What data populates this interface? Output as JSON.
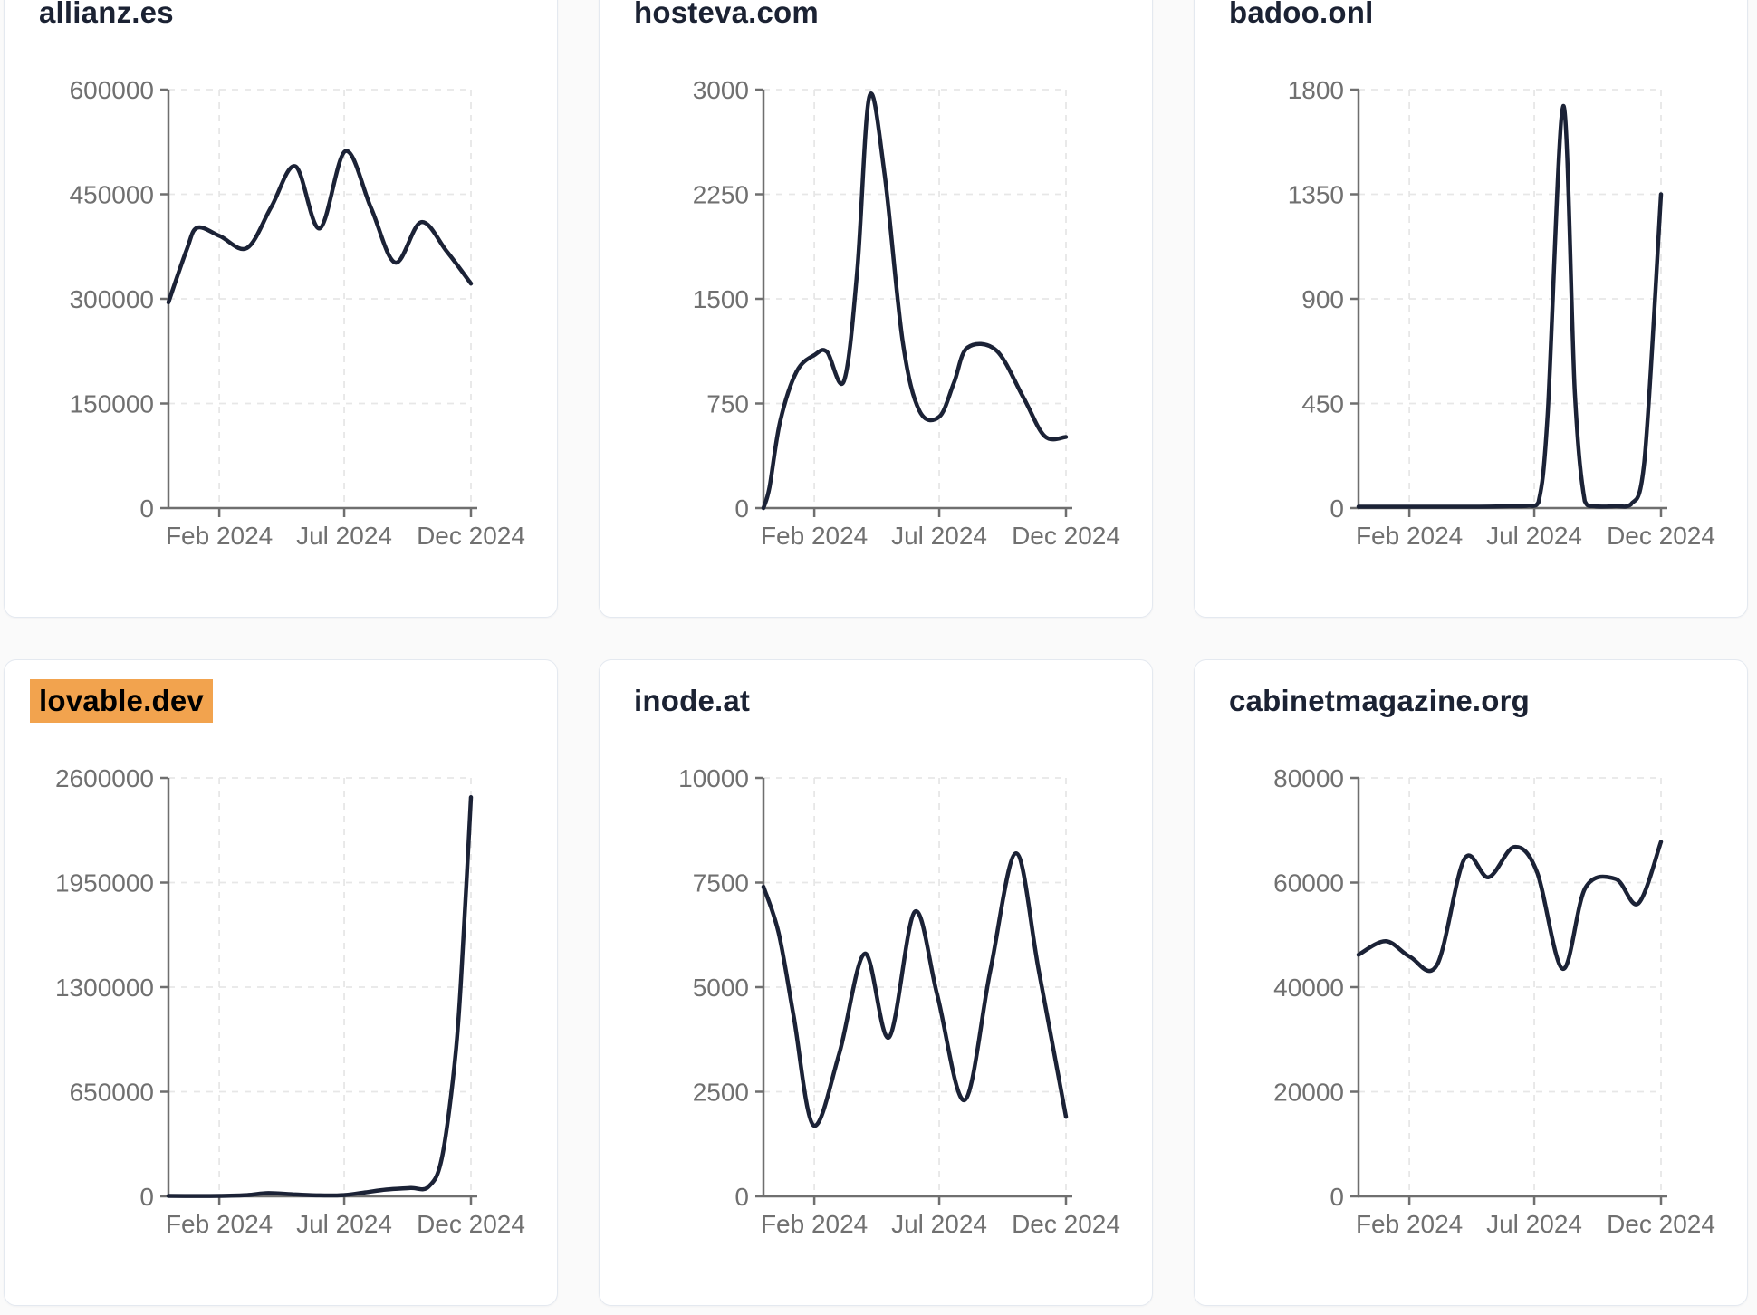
{
  "page": {
    "theme": {
      "page_background": "#fafafa",
      "card_background": "#ffffff",
      "card_border": "#e4e9f0",
      "title_color": "#1b2233",
      "title_highlight_color": "#f2a34e",
      "series_line_color": "#1b2236",
      "axis_color": "#6f6f6f",
      "gridline_color": "#e7e7e7",
      "tick_label_color": "#707070"
    }
  },
  "chart_data": [
    {
      "type": "line",
      "title": "allianz.es",
      "title_highlighted": false,
      "x_tick_labels": [
        "Feb 2024",
        "Jul 2024",
        "Dec 2024"
      ],
      "x_tick_positions": [
        0.168,
        0.581,
        1.0
      ],
      "y_ticks": [
        0,
        150000,
        300000,
        450000,
        600000
      ],
      "ylim": [
        0,
        600000
      ],
      "grid": true,
      "legend": "none",
      "x": [
        0,
        0.06,
        0.095,
        0.17,
        0.26,
        0.34,
        0.42,
        0.5,
        0.585,
        0.67,
        0.75,
        0.835,
        0.92,
        1.0
      ],
      "values": [
        295000,
        370000,
        402000,
        390000,
        373000,
        432000,
        490000,
        401000,
        512000,
        430000,
        352000,
        410000,
        368000,
        322000
      ]
    },
    {
      "type": "line",
      "title": "hosteva.com",
      "title_highlighted": false,
      "x_tick_labels": [
        "Feb 2024",
        "Jul 2024",
        "Dec 2024"
      ],
      "x_tick_positions": [
        0.168,
        0.581,
        1.0
      ],
      "y_ticks": [
        0,
        750,
        1500,
        2250,
        3000
      ],
      "ylim": [
        0,
        3000
      ],
      "grid": true,
      "legend": "none",
      "x": [
        0,
        0.02,
        0.055,
        0.11,
        0.17,
        0.21,
        0.266,
        0.31,
        0.35,
        0.4,
        0.46,
        0.515,
        0.581,
        0.63,
        0.674,
        0.77,
        0.86,
        0.93,
        1.0
      ],
      "values": [
        0,
        150,
        620,
        980,
        1100,
        1120,
        910,
        1700,
        2950,
        2400,
        1200,
        700,
        655,
        900,
        1150,
        1130,
        790,
        515,
        510
      ]
    },
    {
      "type": "line",
      "title": "badoo.onl",
      "title_highlighted": false,
      "x_tick_labels": [
        "Feb 2024",
        "Jul 2024",
        "Dec 2024"
      ],
      "x_tick_positions": [
        0.168,
        0.581,
        1.0
      ],
      "y_ticks": [
        0,
        450,
        900,
        1350,
        1800
      ],
      "ylim": [
        0,
        1800
      ],
      "grid": true,
      "legend": "none",
      "x": [
        0,
        0.1,
        0.2,
        0.3,
        0.4,
        0.5,
        0.56,
        0.595,
        0.625,
        0.677,
        0.715,
        0.748,
        0.78,
        0.85,
        0.9,
        0.945,
        1.0
      ],
      "values": [
        6,
        6,
        6,
        6,
        6,
        8,
        10,
        25,
        400,
        1730,
        500,
        30,
        8,
        8,
        15,
        200,
        1350
      ]
    },
    {
      "type": "line",
      "title": "lovable.dev",
      "title_highlighted": true,
      "x_tick_labels": [
        "Feb 2024",
        "Jul 2024",
        "Dec 2024"
      ],
      "x_tick_positions": [
        0.168,
        0.581,
        1.0
      ],
      "y_ticks": [
        0,
        650000,
        1300000,
        1950000,
        2600000
      ],
      "ylim": [
        0,
        2600000
      ],
      "grid": true,
      "legend": "none",
      "x": [
        0,
        0.08,
        0.17,
        0.26,
        0.33,
        0.42,
        0.5,
        0.58,
        0.65,
        0.72,
        0.8,
        0.86,
        0.905,
        0.95,
        0.975,
        1.0
      ],
      "values": [
        3000,
        2500,
        3000,
        8000,
        20000,
        12000,
        6000,
        8000,
        25000,
        42000,
        52000,
        60000,
        250000,
        900000,
        1600000,
        2480000
      ]
    },
    {
      "type": "line",
      "title": "inode.at",
      "title_highlighted": false,
      "x_tick_labels": [
        "Feb 2024",
        "Jul 2024",
        "Dec 2024"
      ],
      "x_tick_positions": [
        0.168,
        0.581,
        1.0
      ],
      "y_ticks": [
        0,
        2500,
        5000,
        7500,
        10000
      ],
      "ylim": [
        0,
        10000
      ],
      "grid": true,
      "legend": "none",
      "x": [
        0,
        0.05,
        0.1,
        0.165,
        0.25,
        0.335,
        0.415,
        0.5,
        0.575,
        0.665,
        0.75,
        0.835,
        0.91,
        1.0
      ],
      "values": [
        7400,
        6300,
        4300,
        1700,
        3400,
        5800,
        3800,
        6800,
        4800,
        2300,
        5400,
        8200,
        5400,
        1900
      ]
    },
    {
      "type": "line",
      "title": "cabinetmagazine.org",
      "title_highlighted": false,
      "x_tick_labels": [
        "Feb 2024",
        "Jul 2024",
        "Dec 2024"
      ],
      "x_tick_positions": [
        0.168,
        0.581,
        1.0
      ],
      "y_ticks": [
        0,
        20000,
        40000,
        60000,
        80000
      ],
      "ylim": [
        0,
        80000
      ],
      "grid": true,
      "legend": "none",
      "x": [
        0,
        0.09,
        0.17,
        0.26,
        0.35,
        0.43,
        0.515,
        0.59,
        0.675,
        0.75,
        0.85,
        0.925,
        1.0
      ],
      "values": [
        46200,
        48800,
        45800,
        44300,
        64500,
        61000,
        66800,
        62000,
        43500,
        59000,
        60700,
        56000,
        67800
      ]
    }
  ]
}
